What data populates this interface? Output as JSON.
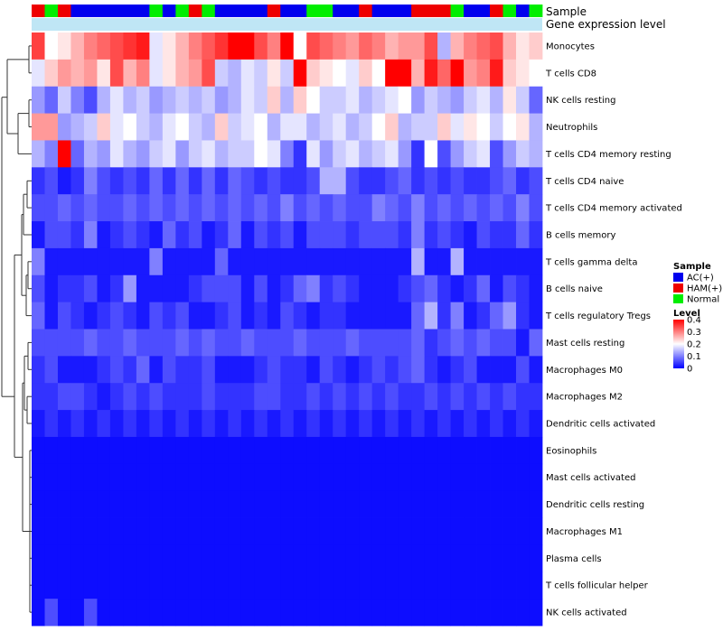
{
  "chart_data": {
    "type": "heatmap",
    "annotation_labels": {
      "sample": "Sample",
      "gene_expression": "Gene expression level"
    },
    "legend": {
      "sample_title": "Sample",
      "sample_groups": [
        {
          "name": "AC(+)",
          "color": "#0000ee"
        },
        {
          "name": "HAM(+)",
          "color": "#ee0000"
        },
        {
          "name": "Normal",
          "color": "#00ee00"
        }
      ],
      "level_title": "Level",
      "level_ticks": [
        "0.4",
        "0.3",
        "0.2",
        "0.1",
        "0"
      ]
    },
    "colors": {
      "low": "#0000ff",
      "mid": "#ffffff",
      "high": "#ff0000",
      "gene_expression_bar": "#bfe6f5"
    },
    "color_range": [
      0,
      0.4
    ],
    "color_mid": 0.2,
    "sample_groups_per_column": [
      "HAM(+)",
      "Normal",
      "HAM(+)",
      "AC(+)",
      "AC(+)",
      "AC(+)",
      "AC(+)",
      "AC(+)",
      "AC(+)",
      "Normal",
      "AC(+)",
      "Normal",
      "HAM(+)",
      "Normal",
      "AC(+)",
      "AC(+)",
      "AC(+)",
      "AC(+)",
      "HAM(+)",
      "AC(+)",
      "AC(+)",
      "Normal",
      "Normal",
      "AC(+)",
      "AC(+)",
      "HAM(+)",
      "AC(+)",
      "AC(+)",
      "AC(+)",
      "HAM(+)",
      "HAM(+)",
      "HAM(+)",
      "Normal",
      "AC(+)",
      "AC(+)",
      "HAM(+)",
      "Normal",
      "AC(+)",
      "Normal"
    ],
    "rows": [
      "Monocytes",
      "T cells CD8",
      "NK cells resting",
      "Neutrophils",
      "T cells CD4 memory resting",
      "T cells CD4 naive",
      "T cells CD4 memory activated",
      "B cells memory",
      "T cells gamma delta",
      "B cells naive",
      "T cells regulatory  Tregs",
      "Mast cells resting",
      "Macrophages M0",
      "Macrophages M2",
      "Dendritic cells activated",
      "Eosinophils",
      "Mast cells activated",
      "Dendritic cells resting",
      "Macrophages M1",
      "Plasma cells",
      "T cells follicular helper",
      "NK cells activated"
    ],
    "values": [
      [
        0.35,
        0.2,
        0.22,
        0.26,
        0.3,
        0.32,
        0.34,
        0.36,
        0.38,
        0.18,
        0.22,
        0.26,
        0.3,
        0.33,
        0.36,
        0.4,
        0.4,
        0.34,
        0.3,
        0.4,
        0.2,
        0.34,
        0.32,
        0.3,
        0.28,
        0.32,
        0.3,
        0.26,
        0.28,
        0.28,
        0.34,
        0.14,
        0.26,
        0.3,
        0.32,
        0.34,
        0.26,
        0.22,
        0.24
      ],
      [
        0.18,
        0.24,
        0.28,
        0.26,
        0.28,
        0.22,
        0.34,
        0.26,
        0.3,
        0.18,
        0.22,
        0.26,
        0.28,
        0.34,
        0.16,
        0.14,
        0.18,
        0.16,
        0.22,
        0.16,
        0.4,
        0.24,
        0.22,
        0.2,
        0.18,
        0.24,
        0.2,
        0.4,
        0.4,
        0.26,
        0.38,
        0.32,
        0.4,
        0.28,
        0.3,
        0.38,
        0.24,
        0.22,
        0.2
      ],
      [
        0.12,
        0.08,
        0.16,
        0.1,
        0.06,
        0.14,
        0.18,
        0.14,
        0.16,
        0.12,
        0.14,
        0.16,
        0.14,
        0.16,
        0.12,
        0.14,
        0.18,
        0.16,
        0.24,
        0.14,
        0.24,
        0.2,
        0.16,
        0.16,
        0.18,
        0.14,
        0.16,
        0.18,
        0.2,
        0.12,
        0.16,
        0.14,
        0.12,
        0.16,
        0.18,
        0.14,
        0.22,
        0.16,
        0.08
      ],
      [
        0.28,
        0.28,
        0.12,
        0.14,
        0.16,
        0.24,
        0.18,
        0.2,
        0.16,
        0.14,
        0.18,
        0.2,
        0.16,
        0.14,
        0.24,
        0.16,
        0.18,
        0.2,
        0.14,
        0.18,
        0.18,
        0.14,
        0.16,
        0.18,
        0.14,
        0.16,
        0.2,
        0.24,
        0.14,
        0.16,
        0.16,
        0.24,
        0.18,
        0.22,
        0.2,
        0.16,
        0.2,
        0.22,
        0.14
      ],
      [
        0.14,
        0.1,
        0.4,
        0.08,
        0.14,
        0.12,
        0.18,
        0.14,
        0.12,
        0.16,
        0.18,
        0.12,
        0.16,
        0.18,
        0.14,
        0.16,
        0.16,
        0.2,
        0.18,
        0.1,
        0.04,
        0.18,
        0.12,
        0.16,
        0.18,
        0.14,
        0.16,
        0.18,
        0.12,
        0.04,
        0.2,
        0.06,
        0.12,
        0.16,
        0.18,
        0.06,
        0.12,
        0.16,
        0.14
      ],
      [
        0.04,
        0.06,
        0.02,
        0.04,
        0.1,
        0.06,
        0.04,
        0.06,
        0.04,
        0.08,
        0.04,
        0.08,
        0.04,
        0.08,
        0.04,
        0.08,
        0.06,
        0.04,
        0.06,
        0.04,
        0.04,
        0.06,
        0.14,
        0.14,
        0.06,
        0.04,
        0.04,
        0.06,
        0.08,
        0.04,
        0.06,
        0.04,
        0.06,
        0.04,
        0.04,
        0.06,
        0.08,
        0.04,
        0.06
      ],
      [
        0.06,
        0.06,
        0.08,
        0.06,
        0.08,
        0.06,
        0.06,
        0.08,
        0.06,
        0.08,
        0.06,
        0.08,
        0.06,
        0.08,
        0.06,
        0.08,
        0.06,
        0.08,
        0.06,
        0.1,
        0.06,
        0.08,
        0.06,
        0.08,
        0.06,
        0.06,
        0.1,
        0.08,
        0.06,
        0.1,
        0.06,
        0.08,
        0.06,
        0.08,
        0.06,
        0.08,
        0.06,
        0.1,
        0.06
      ],
      [
        0.02,
        0.06,
        0.06,
        0.04,
        0.1,
        0.02,
        0.04,
        0.06,
        0.04,
        0.02,
        0.08,
        0.04,
        0.06,
        0.02,
        0.04,
        0.08,
        0.02,
        0.06,
        0.04,
        0.06,
        0.02,
        0.06,
        0.06,
        0.06,
        0.04,
        0.06,
        0.06,
        0.06,
        0.04,
        0.1,
        0.04,
        0.06,
        0.04,
        0.02,
        0.06,
        0.04,
        0.04,
        0.08,
        0.04
      ],
      [
        0.1,
        0.02,
        0.02,
        0.02,
        0.02,
        0.02,
        0.02,
        0.02,
        0.02,
        0.1,
        0.02,
        0.02,
        0.02,
        0.02,
        0.08,
        0.02,
        0.02,
        0.02,
        0.02,
        0.02,
        0.02,
        0.02,
        0.02,
        0.02,
        0.02,
        0.02,
        0.02,
        0.02,
        0.02,
        0.14,
        0.02,
        0.02,
        0.14,
        0.02,
        0.02,
        0.02,
        0.02,
        0.02,
        0.02
      ],
      [
        0.06,
        0.02,
        0.04,
        0.04,
        0.06,
        0.02,
        0.04,
        0.12,
        0.02,
        0.02,
        0.02,
        0.02,
        0.04,
        0.06,
        0.06,
        0.06,
        0.02,
        0.06,
        0.02,
        0.04,
        0.08,
        0.1,
        0.04,
        0.06,
        0.04,
        0.02,
        0.02,
        0.02,
        0.04,
        0.06,
        0.08,
        0.04,
        0.02,
        0.04,
        0.08,
        0.02,
        0.06,
        0.04,
        0.02
      ],
      [
        0.08,
        0.02,
        0.06,
        0.04,
        0.02,
        0.04,
        0.06,
        0.04,
        0.02,
        0.06,
        0.04,
        0.06,
        0.02,
        0.02,
        0.04,
        0.06,
        0.02,
        0.04,
        0.02,
        0.06,
        0.04,
        0.02,
        0.04,
        0.04,
        0.02,
        0.02,
        0.02,
        0.02,
        0.02,
        0.08,
        0.14,
        0.04,
        0.1,
        0.02,
        0.04,
        0.08,
        0.12,
        0.04,
        0.02
      ],
      [
        0.06,
        0.06,
        0.06,
        0.06,
        0.08,
        0.06,
        0.06,
        0.08,
        0.06,
        0.06,
        0.06,
        0.08,
        0.06,
        0.08,
        0.06,
        0.06,
        0.08,
        0.06,
        0.06,
        0.06,
        0.08,
        0.06,
        0.06,
        0.06,
        0.08,
        0.06,
        0.06,
        0.06,
        0.06,
        0.08,
        0.04,
        0.06,
        0.08,
        0.06,
        0.08,
        0.06,
        0.06,
        0.02,
        0.08
      ],
      [
        0.04,
        0.06,
        0.02,
        0.02,
        0.02,
        0.04,
        0.06,
        0.04,
        0.08,
        0.02,
        0.06,
        0.04,
        0.04,
        0.06,
        0.02,
        0.02,
        0.02,
        0.04,
        0.06,
        0.04,
        0.04,
        0.02,
        0.06,
        0.04,
        0.02,
        0.04,
        0.06,
        0.04,
        0.06,
        0.08,
        0.04,
        0.02,
        0.04,
        0.06,
        0.02,
        0.02,
        0.02,
        0.06,
        0.02
      ],
      [
        0.04,
        0.04,
        0.06,
        0.06,
        0.04,
        0.02,
        0.04,
        0.06,
        0.04,
        0.06,
        0.04,
        0.04,
        0.04,
        0.06,
        0.04,
        0.04,
        0.04,
        0.06,
        0.06,
        0.04,
        0.04,
        0.06,
        0.04,
        0.06,
        0.04,
        0.06,
        0.04,
        0.06,
        0.04,
        0.04,
        0.06,
        0.04,
        0.06,
        0.04,
        0.06,
        0.04,
        0.06,
        0.04,
        0.04
      ],
      [
        0.02,
        0.04,
        0.02,
        0.04,
        0.02,
        0.04,
        0.02,
        0.04,
        0.02,
        0.04,
        0.02,
        0.04,
        0.02,
        0.04,
        0.02,
        0.04,
        0.02,
        0.04,
        0.02,
        0.04,
        0.02,
        0.04,
        0.02,
        0.04,
        0.02,
        0.04,
        0.02,
        0.04,
        0.02,
        0.04,
        0.02,
        0.04,
        0.02,
        0.04,
        0.02,
        0.04,
        0.02,
        0.04,
        0.02
      ],
      [
        0.01,
        0.01,
        0.01,
        0.01,
        0.01,
        0.01,
        0.01,
        0.01,
        0.01,
        0.01,
        0.01,
        0.01,
        0.01,
        0.01,
        0.01,
        0.01,
        0.01,
        0.01,
        0.01,
        0.01,
        0.01,
        0.01,
        0.01,
        0.01,
        0.01,
        0.01,
        0.01,
        0.01,
        0.01,
        0.01,
        0.01,
        0.01,
        0.01,
        0.01,
        0.01,
        0.01,
        0.01,
        0.01,
        0.01
      ],
      [
        0.01,
        0.01,
        0.01,
        0.01,
        0.01,
        0.01,
        0.01,
        0.01,
        0.01,
        0.01,
        0.01,
        0.01,
        0.01,
        0.01,
        0.01,
        0.01,
        0.01,
        0.01,
        0.01,
        0.01,
        0.01,
        0.01,
        0.01,
        0.01,
        0.01,
        0.01,
        0.01,
        0.01,
        0.01,
        0.01,
        0.01,
        0.01,
        0.01,
        0.01,
        0.01,
        0.01,
        0.01,
        0.01,
        0.01
      ],
      [
        0.01,
        0.01,
        0.01,
        0.01,
        0.01,
        0.01,
        0.01,
        0.01,
        0.01,
        0.01,
        0.01,
        0.01,
        0.01,
        0.01,
        0.01,
        0.01,
        0.01,
        0.01,
        0.01,
        0.01,
        0.01,
        0.01,
        0.01,
        0.01,
        0.01,
        0.01,
        0.01,
        0.01,
        0.01,
        0.01,
        0.01,
        0.01,
        0.01,
        0.01,
        0.01,
        0.01,
        0.01,
        0.01,
        0.01
      ],
      [
        0.01,
        0.01,
        0.01,
        0.01,
        0.01,
        0.01,
        0.01,
        0.01,
        0.01,
        0.01,
        0.01,
        0.01,
        0.01,
        0.01,
        0.01,
        0.01,
        0.01,
        0.01,
        0.01,
        0.01,
        0.01,
        0.01,
        0.01,
        0.01,
        0.01,
        0.01,
        0.01,
        0.01,
        0.01,
        0.01,
        0.01,
        0.01,
        0.01,
        0.01,
        0.01,
        0.01,
        0.01,
        0.01,
        0.01
      ],
      [
        0.01,
        0.01,
        0.01,
        0.01,
        0.01,
        0.01,
        0.01,
        0.01,
        0.01,
        0.01,
        0.01,
        0.01,
        0.01,
        0.01,
        0.01,
        0.01,
        0.01,
        0.01,
        0.01,
        0.01,
        0.01,
        0.01,
        0.01,
        0.01,
        0.01,
        0.01,
        0.01,
        0.01,
        0.01,
        0.01,
        0.01,
        0.01,
        0.01,
        0.01,
        0.01,
        0.01,
        0.01,
        0.01,
        0.01
      ],
      [
        0.01,
        0.01,
        0.01,
        0.01,
        0.01,
        0.01,
        0.01,
        0.01,
        0.01,
        0.01,
        0.01,
        0.01,
        0.01,
        0.01,
        0.01,
        0.01,
        0.01,
        0.01,
        0.01,
        0.01,
        0.01,
        0.01,
        0.01,
        0.01,
        0.01,
        0.01,
        0.01,
        0.01,
        0.01,
        0.01,
        0.01,
        0.01,
        0.01,
        0.01,
        0.01,
        0.01,
        0.01,
        0.01,
        0.01
      ],
      [
        0.01,
        0.06,
        0.01,
        0.01,
        0.06,
        0.01,
        0.01,
        0.01,
        0.01,
        0.01,
        0.01,
        0.01,
        0.01,
        0.01,
        0.01,
        0.01,
        0.01,
        0.01,
        0.01,
        0.01,
        0.01,
        0.01,
        0.01,
        0.01,
        0.01,
        0.01,
        0.01,
        0.01,
        0.01,
        0.01,
        0.01,
        0.01,
        0.01,
        0.01,
        0.01,
        0.01,
        0.01,
        0.01,
        0.01
      ]
    ]
  }
}
